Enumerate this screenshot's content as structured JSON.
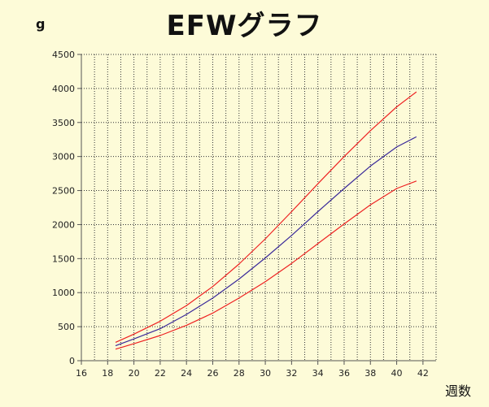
{
  "chart_data": {
    "type": "line",
    "title": "EFWグラフ",
    "ylabel": "g",
    "xlabel": "週数",
    "xlim": [
      16,
      43
    ],
    "ylim": [
      0,
      4500
    ],
    "xticks": [
      16,
      18,
      20,
      22,
      24,
      26,
      28,
      30,
      32,
      34,
      36,
      38,
      40,
      42
    ],
    "yticks": [
      0,
      500,
      1000,
      1500,
      2000,
      2500,
      3000,
      3500,
      4000,
      4500
    ],
    "grid": true,
    "series": [
      {
        "color": "#ee2222",
        "x": [
          18.6,
          20,
          22,
          24,
          26,
          28,
          30,
          32,
          34,
          36,
          38,
          40,
          41.5
        ],
        "y": [
          270,
          390,
          580,
          810,
          1090,
          1420,
          1790,
          2190,
          2600,
          3000,
          3380,
          3730,
          3950
        ]
      },
      {
        "color": "#3a2a9a",
        "x": [
          18.6,
          20,
          22,
          24,
          26,
          28,
          30,
          32,
          34,
          36,
          38,
          40,
          41.5
        ],
        "y": [
          220,
          320,
          470,
          680,
          920,
          1200,
          1510,
          1840,
          2190,
          2530,
          2860,
          3140,
          3290
        ]
      },
      {
        "color": "#ee2222",
        "x": [
          18.6,
          20,
          22,
          24,
          26,
          28,
          30,
          32,
          34,
          36,
          38,
          40,
          41.5
        ],
        "y": [
          170,
          250,
          370,
          520,
          700,
          920,
          1160,
          1430,
          1720,
          2010,
          2290,
          2530,
          2640
        ]
      }
    ]
  }
}
